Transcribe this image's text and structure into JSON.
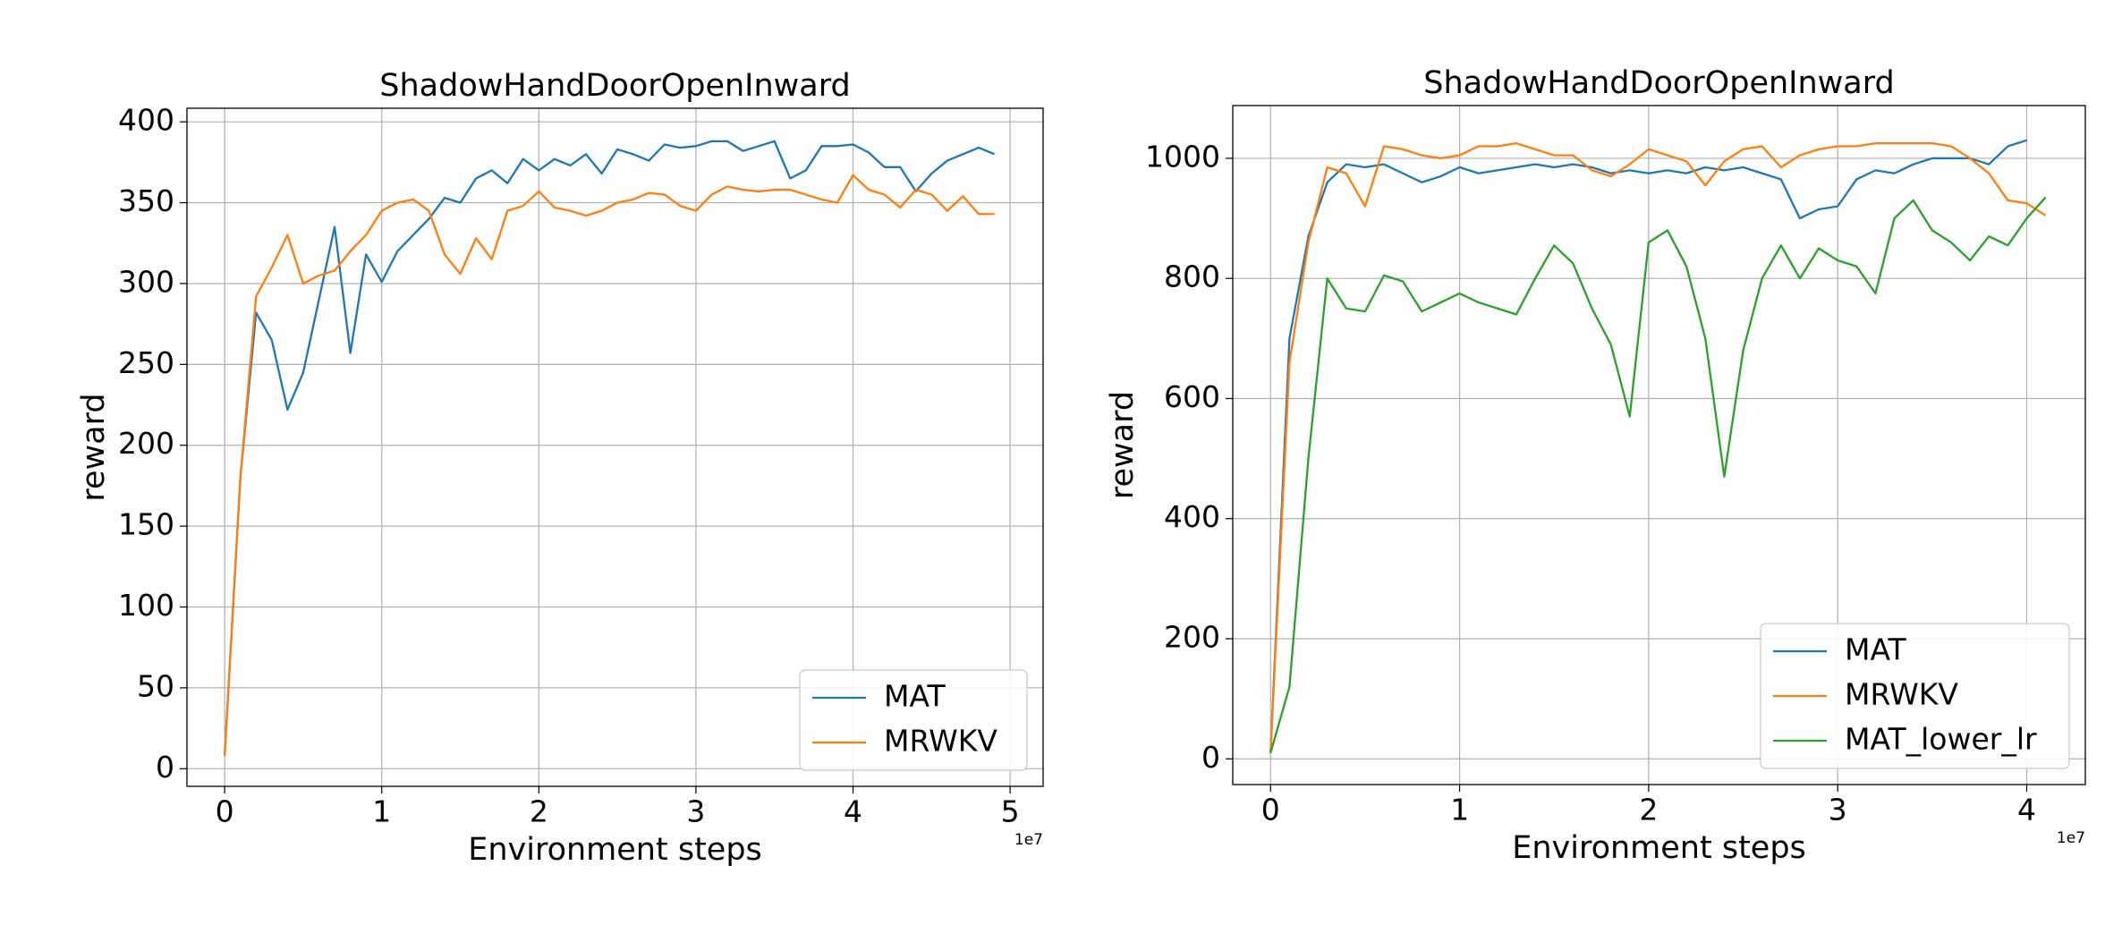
{
  "chart_data": [
    {
      "type": "line",
      "title": "ShadowHandDoorOpenInward",
      "xlabel": "Environment steps",
      "ylabel": "reward",
      "x_offset_label": "1e7",
      "x": [
        0,
        0.1,
        0.2,
        0.3,
        0.4,
        0.5,
        0.6,
        0.7,
        0.8,
        0.9,
        1.0,
        1.1,
        1.2,
        1.3,
        1.4,
        1.5,
        1.6,
        1.7,
        1.8,
        1.9,
        2.0,
        2.1,
        2.2,
        2.3,
        2.4,
        2.5,
        2.6,
        2.7,
        2.8,
        2.9,
        3.0,
        3.1,
        3.2,
        3.3,
        3.4,
        3.5,
        3.6,
        3.7,
        3.8,
        3.9,
        4.0,
        4.1,
        4.2,
        4.3,
        4.4,
        4.5,
        4.6,
        4.7,
        4.8,
        4.9
      ],
      "series": [
        {
          "name": "MAT",
          "color": "#1f77b4",
          "values": [
            8,
            180,
            282,
            265,
            222,
            245,
            290,
            335,
            257,
            318,
            301,
            320,
            330,
            340,
            353,
            350,
            365,
            370,
            362,
            377,
            370,
            377,
            373,
            380,
            368,
            383,
            380,
            376,
            386,
            384,
            385,
            388,
            388,
            382,
            385,
            388,
            365,
            370,
            385,
            385,
            386,
            381,
            372,
            372,
            357,
            368,
            376,
            380,
            384,
            380
          ]
        },
        {
          "name": "MRWKV",
          "color": "#ff7f0e",
          "values": [
            8,
            180,
            292,
            310,
            330,
            300,
            305,
            308,
            320,
            330,
            345,
            350,
            352,
            345,
            318,
            306,
            328,
            315,
            345,
            348,
            357,
            347,
            345,
            342,
            345,
            350,
            352,
            356,
            355,
            348,
            345,
            355,
            360,
            358,
            357,
            358,
            358,
            355,
            352,
            350,
            367,
            358,
            355,
            347,
            358,
            355,
            345,
            354,
            343,
            343
          ]
        }
      ],
      "xlim": [
        -0.24,
        5.21
      ],
      "ylim": [
        -10.9,
        408.4
      ],
      "xticks": [
        0,
        1,
        2,
        3,
        4,
        5
      ],
      "yticks": [
        0,
        50,
        100,
        150,
        200,
        250,
        300,
        350,
        400
      ],
      "grid": true,
      "legend": "lower right"
    },
    {
      "type": "line",
      "title": "ShadowHandDoorOpenInward",
      "xlabel": "Environment steps",
      "ylabel": "reward",
      "x_offset_label": "1e7",
      "x": [
        0,
        0.1,
        0.2,
        0.3,
        0.4,
        0.5,
        0.6,
        0.7,
        0.8,
        0.9,
        1.0,
        1.1,
        1.2,
        1.3,
        1.4,
        1.5,
        1.6,
        1.7,
        1.8,
        1.9,
        2.0,
        2.1,
        2.2,
        2.3,
        2.4,
        2.5,
        2.6,
        2.7,
        2.8,
        2.9,
        3.0,
        3.1,
        3.2,
        3.3,
        3.4,
        3.5,
        3.6,
        3.7,
        3.8,
        3.9,
        4.0,
        4.1
      ],
      "series": [
        {
          "name": "MAT",
          "color": "#1f77b4",
          "values": [
            10,
            700,
            870,
            960,
            990,
            985,
            990,
            975,
            960,
            970,
            985,
            975,
            980,
            985,
            990,
            985,
            990,
            985,
            975,
            980,
            975,
            980,
            975,
            985,
            980,
            985,
            975,
            965,
            900,
            915,
            920,
            965,
            980,
            975,
            990,
            1000,
            1000,
            1000,
            990,
            1020,
            1030,
            null
          ]
        },
        {
          "name": "MRWKV",
          "color": "#ff7f0e",
          "values": [
            10,
            660,
            860,
            985,
            975,
            920,
            1020,
            1015,
            1005,
            1000,
            1005,
            1020,
            1020,
            1025,
            1015,
            1005,
            1005,
            980,
            970,
            990,
            1015,
            1005,
            995,
            955,
            995,
            1015,
            1020,
            985,
            1005,
            1015,
            1020,
            1020,
            1025,
            1025,
            1025,
            1025,
            1020,
            1000,
            975,
            930,
            925,
            905
          ]
        },
        {
          "name": "MAT_lower_lr",
          "color": "#2ca02c",
          "values": [
            10,
            120,
            500,
            800,
            750,
            745,
            805,
            795,
            745,
            760,
            775,
            760,
            750,
            740,
            800,
            855,
            825,
            750,
            690,
            570,
            860,
            880,
            820,
            700,
            470,
            680,
            800,
            855,
            800,
            850,
            830,
            820,
            775,
            900,
            930,
            880,
            860,
            830,
            870,
            855,
            900,
            935
          ]
        }
      ],
      "xlim": [
        -0.2,
        4.31
      ],
      "ylim": [
        -42.8,
        1087.8
      ],
      "xticks": [
        0,
        1,
        2,
        3,
        4
      ],
      "yticks": [
        0,
        200,
        400,
        600,
        800,
        1000
      ],
      "grid": true,
      "legend": "lower right"
    }
  ]
}
